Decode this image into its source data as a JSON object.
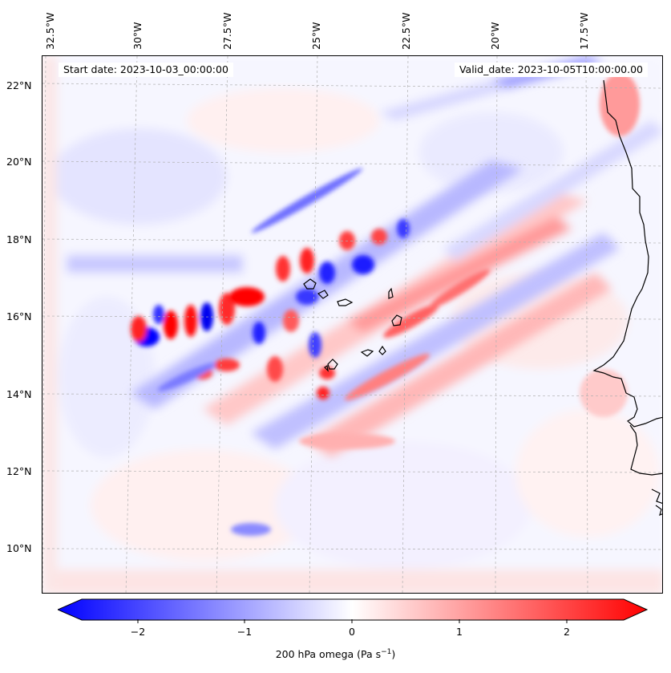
{
  "map": {
    "start_date": "Start date: 2023-10-03_00:00:00",
    "valid_date": "Valid_date: 2023-10-05T10:00:00.00",
    "longitude_labels": [
      "32.5°W",
      "30°W",
      "27.5°W",
      "25°W",
      "22.5°W",
      "20°W",
      "17.5°W"
    ],
    "latitude_labels": [
      "22°N",
      "20°N",
      "18°N",
      "16°N",
      "14°N",
      "12°N",
      "10°N"
    ],
    "field": "200 hPa omega",
    "colormap": "bwr",
    "colors": {
      "negative": "#0000ff",
      "zero": "#ffffff",
      "positive": "#ff0000",
      "coastline": "#000000"
    }
  },
  "colorbar": {
    "ticks": [
      "−2",
      "−1",
      "0",
      "1",
      "2"
    ],
    "tick_values": [
      -2,
      -1,
      0,
      1,
      2
    ],
    "range": [
      -2.6,
      2.6
    ],
    "extend": "both",
    "label_main": "200 hPa omega (Pa s",
    "label_sup": "−1",
    "label_end": ")"
  }
}
